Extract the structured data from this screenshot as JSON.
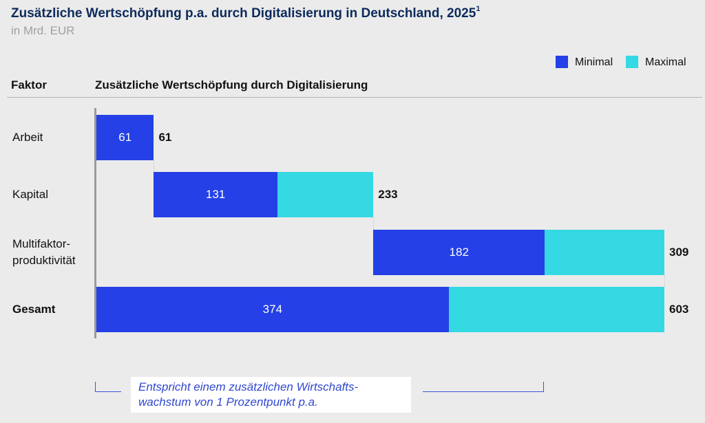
{
  "chart_data": {
    "type": "bar",
    "subtype": "waterfall-stacked-horizontal",
    "title": "Zusätzliche Wertschöpfung p.a. durch Digitalisierung in Deutschland, 2025",
    "title_footnote": "1",
    "subtitle": "in Mrd. EUR",
    "column_headers": {
      "category": "Faktor",
      "values": "Zusätzliche Wertschöpfung durch Digitalisierung"
    },
    "legend": {
      "position": "top-right",
      "entries": [
        {
          "name": "Minimal",
          "color": "#2440e6"
        },
        {
          "name": "Maximal",
          "color": "#35d9e3"
        }
      ]
    },
    "categories": [
      "Arbeit",
      "Kapital",
      "Multifaktor-\nproduktivität",
      "Gesamt"
    ],
    "bold_categories": [
      "Gesamt"
    ],
    "series": [
      {
        "name": "Minimal",
        "values": [
          61,
          131,
          182,
          374
        ]
      },
      {
        "name": "Maximal",
        "values": [
          61,
          233,
          309,
          603
        ]
      }
    ],
    "offsets": [
      0,
      61,
      294,
      0
    ],
    "xlim": [
      0,
      603
    ],
    "grid": false,
    "annotation": "Entspricht einem zusätzlichen Wirtschafts-\nwachstum von 1 Prozentpunkt p.a."
  }
}
